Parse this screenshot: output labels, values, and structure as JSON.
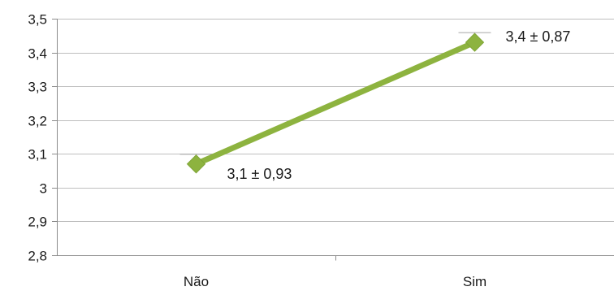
{
  "chart_data": {
    "type": "line",
    "categories": [
      "Não",
      "Sim"
    ],
    "series": [
      {
        "values": [
          3.07,
          3.43
        ],
        "data_labels": [
          "3,1 ± 0,93",
          "3,4 ± 0,87"
        ],
        "color": "#8db33f"
      }
    ],
    "ylim": [
      2.8,
      3.5
    ],
    "y_ticks": [
      3.5,
      3.4,
      3.3,
      3.2,
      3.1,
      3.0,
      2.9,
      2.8
    ],
    "y_tick_labels": [
      "3,5",
      "3,4",
      "3,3",
      "3,2",
      "3,1",
      "3",
      "2,9",
      "2,8"
    ],
    "grid": true,
    "gridline_color": "#bfbfbf",
    "axis_color": "#8c8c8c",
    "marker": "diamond",
    "error_bar_color": "#a6a6a6",
    "error_bar_halfwidth": 0.0
  }
}
